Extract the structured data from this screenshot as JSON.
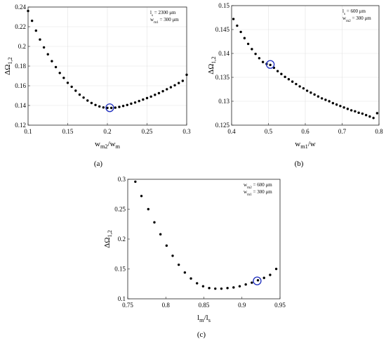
{
  "chart_data": [
    {
      "id": "a",
      "type": "scatter",
      "panel_label": "(a)",
      "xlabel": {
        "main": "w",
        "sub": "m2",
        "main2": "/w",
        "sub2": "m"
      },
      "ylabel": {
        "main": "ΔΩ",
        "sub": "1,2"
      },
      "xlim": [
        0.1,
        0.3
      ],
      "ylim": [
        0.12,
        0.24
      ],
      "xticks": [
        0.1,
        0.15,
        0.2,
        0.25,
        0.3
      ],
      "xtick_labels": [
        "0.1",
        "0.15",
        "0.2",
        "0.25",
        "0.3"
      ],
      "yticks": [
        0.12,
        0.14,
        0.16,
        0.18,
        0.2,
        0.22,
        0.24
      ],
      "ytick_labels": [
        "0.12",
        "0.14",
        "0.16",
        "0.18",
        "0.2",
        "0.22",
        "0.24"
      ],
      "grid": true,
      "annotations": [
        {
          "main": "l",
          "sub": "s",
          "rest": " = 2300 μm"
        },
        {
          "main": "w",
          "sub": "m1",
          "rest": " = 300 μm"
        }
      ],
      "marker_color": "#1f2fbf",
      "highlight": {
        "x": 0.203,
        "y": 0.1377
      },
      "x": [
        0.1,
        0.105,
        0.11,
        0.115,
        0.12,
        0.125,
        0.13,
        0.135,
        0.14,
        0.145,
        0.15,
        0.155,
        0.16,
        0.165,
        0.17,
        0.175,
        0.18,
        0.185,
        0.19,
        0.195,
        0.2,
        0.205,
        0.21,
        0.215,
        0.22,
        0.225,
        0.23,
        0.235,
        0.24,
        0.245,
        0.25,
        0.255,
        0.26,
        0.265,
        0.27,
        0.275,
        0.28,
        0.285,
        0.29,
        0.295,
        0.3
      ],
      "y": [
        0.236,
        0.226,
        0.216,
        0.207,
        0.199,
        0.192,
        0.185,
        0.179,
        0.173,
        0.168,
        0.163,
        0.159,
        0.155,
        0.151,
        0.148,
        0.145,
        0.1425,
        0.1405,
        0.139,
        0.138,
        0.1375,
        0.1375,
        0.1378,
        0.1385,
        0.1395,
        0.1405,
        0.1418,
        0.143,
        0.1445,
        0.146,
        0.1475,
        0.149,
        0.1508,
        0.1525,
        0.1545,
        0.1565,
        0.1585,
        0.1605,
        0.1628,
        0.165,
        0.1712
      ]
    },
    {
      "id": "b",
      "type": "scatter",
      "panel_label": "(b)",
      "xlabel": {
        "main": "w",
        "sub": "m1",
        "main2": "/w",
        "sub2": ""
      },
      "ylabel": {
        "main": "ΔΩ",
        "sub": "1,2"
      },
      "xlim": [
        0.4,
        0.8
      ],
      "ylim": [
        0.125,
        0.15
      ],
      "xticks": [
        0.4,
        0.5,
        0.6,
        0.7,
        0.8
      ],
      "xtick_labels": [
        "0.4",
        "0.5",
        "0.6",
        "0.7",
        "0.8"
      ],
      "yticks": [
        0.125,
        0.13,
        0.135,
        0.14,
        0.145,
        0.15
      ],
      "ytick_labels": [
        "0.125",
        "0.13",
        "0.135",
        "0.14",
        "0.145",
        "0.15"
      ],
      "grid": true,
      "annotations": [
        {
          "main": "l",
          "sub": "s",
          "rest": " = 600 μm"
        },
        {
          "main": "w",
          "sub": "m2",
          "rest": " = 300 μm"
        }
      ],
      "marker_color": "#1f2fbf",
      "highlight": {
        "x": 0.505,
        "y": 0.1377
      },
      "x": [
        0.405,
        0.415,
        0.425,
        0.435,
        0.445,
        0.455,
        0.465,
        0.475,
        0.485,
        0.495,
        0.505,
        0.515,
        0.525,
        0.535,
        0.545,
        0.555,
        0.565,
        0.575,
        0.585,
        0.595,
        0.605,
        0.615,
        0.625,
        0.635,
        0.645,
        0.655,
        0.665,
        0.675,
        0.685,
        0.695,
        0.705,
        0.715,
        0.725,
        0.735,
        0.745,
        0.755,
        0.765,
        0.775,
        0.785,
        0.795
      ],
      "y": [
        0.1472,
        0.1458,
        0.1445,
        0.1432,
        0.142,
        0.1409,
        0.1399,
        0.139,
        0.1382,
        0.1378,
        0.1376,
        0.137,
        0.1363,
        0.1357,
        0.1351,
        0.1346,
        0.1341,
        0.1336,
        0.1331,
        0.1327,
        0.1322,
        0.1318,
        0.1314,
        0.131,
        0.1306,
        0.1303,
        0.13,
        0.1296,
        0.1293,
        0.129,
        0.1287,
        0.1284,
        0.1281,
        0.1279,
        0.1276,
        0.1274,
        0.1271,
        0.1268,
        0.1265,
        0.1275
      ]
    },
    {
      "id": "c",
      "type": "scatter",
      "panel_label": "(c)",
      "xlabel": {
        "main": "l",
        "sub": "m",
        "main2": "/l",
        "sub2": "s"
      },
      "ylabel": {
        "main": "ΔΩ",
        "sub": "1,2"
      },
      "xlim": [
        0.75,
        0.95
      ],
      "ylim": [
        0.1,
        0.3
      ],
      "xticks": [
        0.75,
        0.8,
        0.85,
        0.9,
        0.95
      ],
      "xtick_labels": [
        "0.75",
        "0.8",
        "0.85",
        "0.9",
        "0.95"
      ],
      "yticks": [
        0.1,
        0.15,
        0.2,
        0.25,
        0.3
      ],
      "ytick_labels": [
        "0.1",
        "0.15",
        "0.2",
        "0.25",
        "0.3"
      ],
      "grid": false,
      "annotations": [
        {
          "main": "w",
          "sub": "m2",
          "rest": " = 600 μm"
        },
        {
          "main": "w",
          "sub": "m1",
          "rest": " = 300 μm"
        }
      ],
      "marker_color": "#1f2fbf",
      "highlight": {
        "x": 0.92,
        "y": 0.13
      },
      "x": [
        0.76,
        0.768,
        0.777,
        0.785,
        0.793,
        0.801,
        0.809,
        0.817,
        0.825,
        0.833,
        0.841,
        0.849,
        0.857,
        0.865,
        0.873,
        0.881,
        0.889,
        0.897,
        0.905,
        0.913,
        0.921,
        0.929,
        0.937,
        0.945
      ],
      "y": [
        0.296,
        0.272,
        0.25,
        0.228,
        0.208,
        0.189,
        0.172,
        0.157,
        0.144,
        0.134,
        0.126,
        0.121,
        0.118,
        0.117,
        0.117,
        0.118,
        0.119,
        0.121,
        0.124,
        0.127,
        0.131,
        0.135,
        0.14,
        0.15
      ]
    }
  ]
}
